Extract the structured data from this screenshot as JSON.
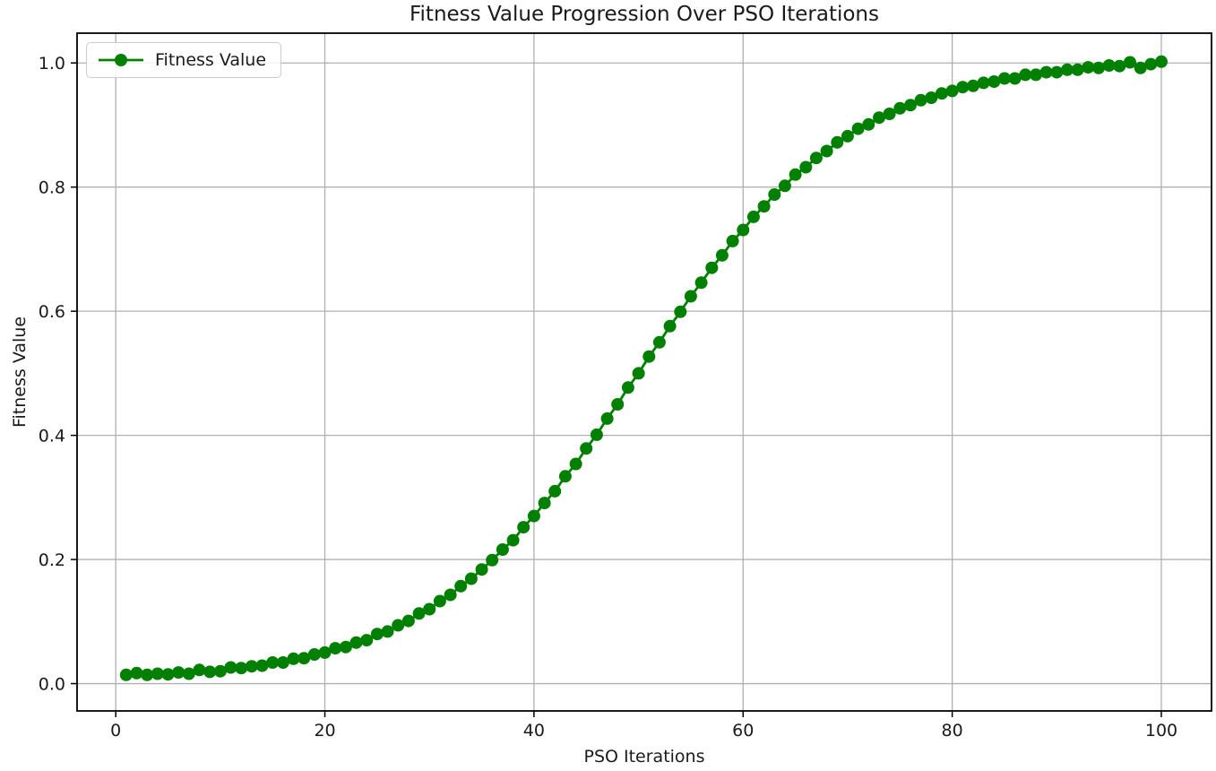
{
  "figure": {
    "title": "Fitness Value Progression Over PSO Iterations",
    "legend": {
      "label": "Fitness Value",
      "position": "upper left"
    }
  },
  "chart_data": {
    "type": "line",
    "title": "Fitness Value Progression Over PSO Iterations",
    "xlabel": "PSO Iterations",
    "ylabel": "Fitness Value",
    "grid": true,
    "legend_position": "upper left",
    "marker": "o",
    "line_color": "#008000",
    "grid_color": "#b0b0b0",
    "spine_color": "#000000",
    "xlim": [
      -3.7,
      104.8
    ],
    "ylim": [
      -0.044,
      1.048
    ],
    "xticks": [
      0,
      20,
      40,
      60,
      80,
      100
    ],
    "xtick_labels": [
      "0",
      "20",
      "40",
      "60",
      "80",
      "100"
    ],
    "yticks": [
      0.0,
      0.2,
      0.4,
      0.6,
      0.8,
      1.0
    ],
    "ytick_labels": [
      "0.0",
      "0.2",
      "0.4",
      "0.6",
      "0.8",
      "1.0"
    ],
    "series": [
      {
        "name": "Fitness Value",
        "x": [
          1,
          2,
          3,
          4,
          5,
          6,
          7,
          8,
          9,
          10,
          11,
          12,
          13,
          14,
          15,
          16,
          17,
          18,
          19,
          20,
          21,
          22,
          23,
          24,
          25,
          26,
          27,
          28,
          29,
          30,
          31,
          32,
          33,
          34,
          35,
          36,
          37,
          38,
          39,
          40,
          41,
          42,
          43,
          44,
          45,
          46,
          47,
          48,
          49,
          50,
          51,
          52,
          53,
          54,
          55,
          56,
          57,
          58,
          59,
          60,
          61,
          62,
          63,
          64,
          65,
          66,
          67,
          68,
          69,
          70,
          71,
          72,
          73,
          74,
          75,
          76,
          77,
          78,
          79,
          80,
          81,
          82,
          83,
          84,
          85,
          86,
          87,
          88,
          89,
          90,
          91,
          92,
          93,
          94,
          95,
          96,
          97,
          98,
          99,
          100
        ],
        "y": [
          0.014,
          0.017,
          0.014,
          0.016,
          0.015,
          0.018,
          0.016,
          0.022,
          0.019,
          0.02,
          0.026,
          0.025,
          0.028,
          0.029,
          0.034,
          0.034,
          0.04,
          0.041,
          0.047,
          0.05,
          0.057,
          0.059,
          0.066,
          0.07,
          0.08,
          0.084,
          0.094,
          0.101,
          0.113,
          0.12,
          0.133,
          0.143,
          0.157,
          0.169,
          0.184,
          0.199,
          0.216,
          0.231,
          0.252,
          0.27,
          0.291,
          0.31,
          0.334,
          0.354,
          0.379,
          0.401,
          0.427,
          0.45,
          0.477,
          0.5,
          0.527,
          0.55,
          0.576,
          0.599,
          0.624,
          0.646,
          0.67,
          0.69,
          0.713,
          0.731,
          0.752,
          0.769,
          0.788,
          0.802,
          0.82,
          0.832,
          0.847,
          0.858,
          0.872,
          0.882,
          0.894,
          0.901,
          0.912,
          0.918,
          0.927,
          0.932,
          0.94,
          0.944,
          0.951,
          0.955,
          0.961,
          0.963,
          0.968,
          0.97,
          0.975,
          0.975,
          0.981,
          0.981,
          0.985,
          0.985,
          0.989,
          0.989,
          0.993,
          0.992,
          0.996,
          0.995,
          1.001,
          0.992,
          0.998,
          1.002
        ]
      }
    ]
  }
}
